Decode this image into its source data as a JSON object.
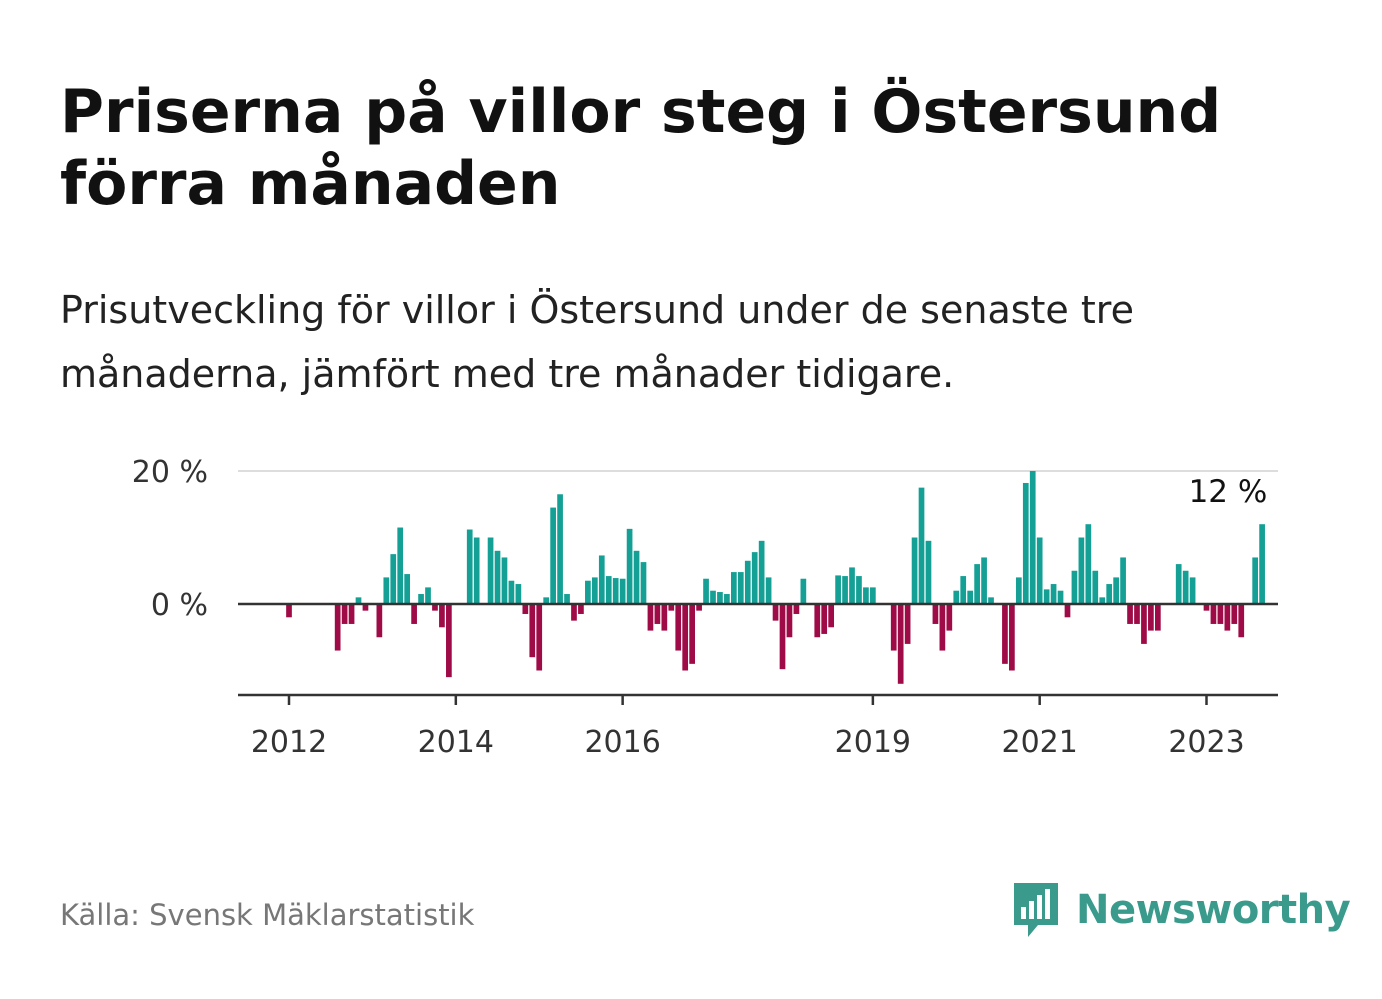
{
  "title": "Priserna på villor steg i Östersund förra månaden",
  "subtitle": "Prisutveckling för villor i Östersund under de senaste tre månaderna, jämfört med tre månader tidigare.",
  "source": "Källa: Svensk Mäklarstatistik",
  "brand": {
    "name": "Newsworthy",
    "logo_icon": "bar-chart-speech-bubble-icon"
  },
  "colors": {
    "positive": "#14a095",
    "negative": "#9e0b46",
    "axis": "#333333",
    "grid": "#dddddd",
    "brand": "#3a9a8c"
  },
  "chart_data": {
    "type": "bar",
    "title": "Priserna på villor steg i Östersund förra månaden",
    "xlabel": "",
    "ylabel": "",
    "ylim": [
      -14,
      20
    ],
    "yticks": [
      {
        "value": 0,
        "label": "0 %"
      },
      {
        "value": 20,
        "label": "20 %"
      }
    ],
    "xticks": [
      {
        "value": 2012.0,
        "label": "2012"
      },
      {
        "value": 2014.0,
        "label": "2014"
      },
      {
        "value": 2016.0,
        "label": "2016"
      },
      {
        "value": 2019.0,
        "label": "2019"
      },
      {
        "value": 2021.0,
        "label": "2021"
      },
      {
        "value": 2023.0,
        "label": "2023"
      }
    ],
    "grid": true,
    "legend": "none",
    "annotation": {
      "label": "12 %",
      "x": "2023-04",
      "value": 12
    },
    "x_start": "2011-01",
    "x_unit": "month",
    "values": [
      0,
      0,
      0,
      0,
      0,
      0,
      0,
      0,
      0,
      0,
      0,
      0,
      -2,
      0,
      0,
      0,
      0,
      0,
      0,
      -7,
      -3,
      -3,
      1,
      -1,
      0,
      -5,
      4,
      7.5,
      11.5,
      4.5,
      -3,
      1.5,
      2.5,
      -1,
      -3.5,
      -11,
      0,
      0,
      11.2,
      10,
      0,
      10,
      8,
      7,
      3.5,
      3,
      -1.5,
      -8,
      -10,
      1,
      14.5,
      16.5,
      1.5,
      -2.5,
      -1.5,
      3.5,
      4,
      7.3,
      4.2,
      3.9,
      3.8,
      11.3,
      8,
      6.3,
      -4,
      -3,
      -4,
      -1,
      -7,
      -10,
      -9,
      -1,
      3.8,
      2,
      1.8,
      1.5,
      4.8,
      4.8,
      6.5,
      7.8,
      9.5,
      4,
      -2.5,
      -9.8,
      -5,
      -1.5,
      3.8,
      0,
      -5,
      -4.5,
      -3.5,
      4.3,
      4.2,
      5.5,
      4.2,
      2.5,
      2.5,
      0,
      0,
      -7,
      -12,
      -6,
      10,
      17.5,
      9.5,
      -3,
      -7,
      -4,
      2,
      4.2,
      2,
      6,
      7,
      1,
      0,
      -9,
      -10,
      4,
      18.2,
      20,
      10,
      2.2,
      3,
      2,
      -2,
      5,
      10,
      12,
      5,
      1,
      3,
      4,
      7,
      -3,
      -3,
      -6,
      -4,
      -4,
      0,
      0,
      6,
      5,
      4,
      0,
      -1,
      -3,
      -3,
      -4,
      -3,
      -5,
      0,
      7,
      12
    ]
  }
}
